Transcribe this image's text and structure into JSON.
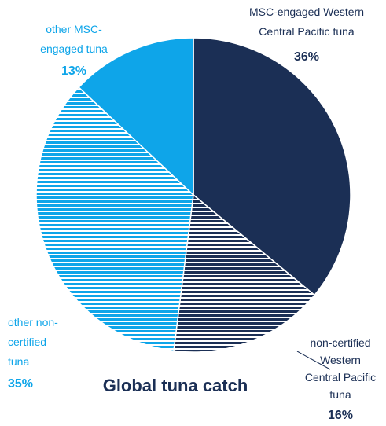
{
  "chart_data": {
    "type": "pie",
    "title": "Global tuna catch",
    "slices": [
      {
        "label_lines": [
          "MSC-engaged Western",
          "Central Pacific tuna"
        ],
        "percent_label": "36%",
        "value": 36,
        "color": "#1b2f55",
        "pattern": "solid"
      },
      {
        "label_lines": [
          "non-certified",
          "Western",
          "Central Pacific",
          "tuna"
        ],
        "percent_label": "16%",
        "value": 16,
        "color": "#1b2f55",
        "pattern": "horizontal-stripes"
      },
      {
        "label_lines": [
          "other non-",
          "certified",
          "tuna"
        ],
        "percent_label": "35%",
        "value": 35,
        "color": "#0ea5e9",
        "pattern": "horizontal-stripes"
      },
      {
        "label_lines": [
          "other MSC-",
          "engaged tuna"
        ],
        "percent_label": "13%",
        "value": 13,
        "color": "#0ea5e9",
        "pattern": "solid"
      }
    ]
  },
  "colors": {
    "navy_text": "#1b2f55",
    "blue_text": "#0ea5e9",
    "title_text": "#1b2f55"
  }
}
